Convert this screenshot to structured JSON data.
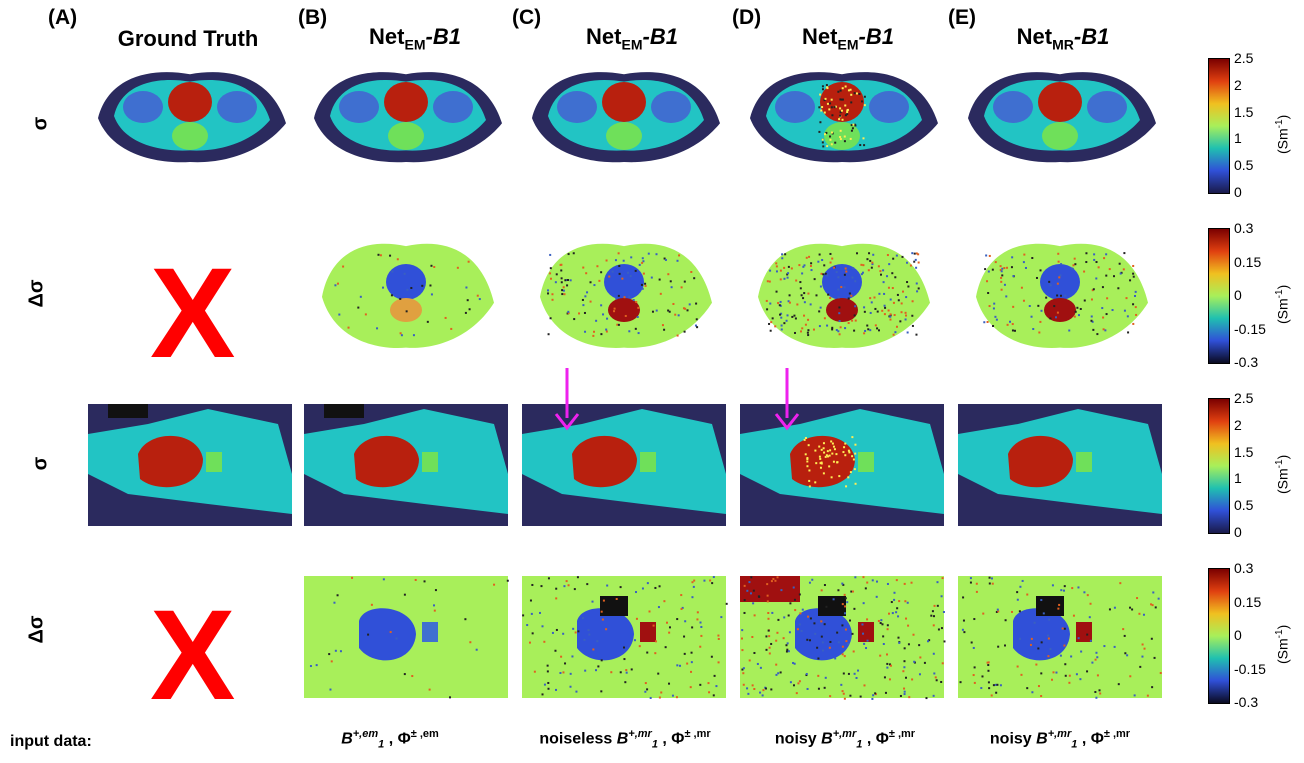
{
  "panels": [
    {
      "letter": "(A)",
      "title": "Ground Truth",
      "net": "",
      "sub": "",
      "suffix": ""
    },
    {
      "letter": "(B)",
      "title": "",
      "net": "Net",
      "sub": "EM",
      "suffix": "-B1"
    },
    {
      "letter": "(C)",
      "title": "",
      "net": "Net",
      "sub": "EM",
      "suffix": "-B1"
    },
    {
      "letter": "(D)",
      "title": "",
      "net": "Net",
      "sub": "EM",
      "suffix": "-B1"
    },
    {
      "letter": "(E)",
      "title": "",
      "net": "Net",
      "sub": "MR",
      "suffix": "-B1"
    }
  ],
  "rows": [
    {
      "label": "σ"
    },
    {
      "label": "Δσ"
    },
    {
      "label": "σ"
    },
    {
      "label": "Δσ"
    }
  ],
  "missing_marker": "X",
  "input_label": "input data:",
  "footers": [
    {
      "prefix": "",
      "b": "B",
      "bsub": "1",
      "bsup": "+,em",
      "phi": "Φ",
      "phisup": "± ,em"
    },
    {
      "prefix": "noiseless ",
      "b": "B",
      "bsub": "1",
      "bsup": "+,mr",
      "phi": "Φ",
      "phisup": "± ,mr"
    },
    {
      "prefix": "noisy ",
      "b": "B",
      "bsub": "1",
      "bsup": "+,mr",
      "phi": "Φ",
      "phisup": "± ,mr"
    },
    {
      "prefix": "noisy ",
      "b": "B",
      "bsub": "1",
      "bsup": "+,mr",
      "phi": "Φ",
      "phisup": "± ,mr"
    }
  ],
  "colorbars": [
    {
      "ticks": [
        "2.5",
        "2",
        "1.5",
        "1",
        "0.5",
        "0"
      ],
      "unit": "(Sm",
      "unit_sup": "-1",
      "unit_close": ")"
    },
    {
      "ticks": [
        "0.3",
        "0.15",
        "0",
        "-0.15",
        "-0.3"
      ],
      "unit": "(Sm",
      "unit_sup": "-1",
      "unit_close": ")"
    },
    {
      "ticks": [
        "2.5",
        "2",
        "1.5",
        "1",
        "0.5",
        "0"
      ],
      "unit": "(Sm",
      "unit_sup": "-1",
      "unit_close": ")"
    },
    {
      "ticks": [
        "0.3",
        "0.15",
        "0",
        "-0.15",
        "-0.3"
      ],
      "unit": "(Sm",
      "unit_sup": "-1",
      "unit_close": ")"
    }
  ],
  "colors": {
    "bg_dark": "#2b2a5e",
    "tissue_cyan": "#22c4c4",
    "tissue_light": "#3fd0b0",
    "organ_red": "#b8200e",
    "organ_green": "#6fe05a",
    "diff_green": "#a8ef5a",
    "diff_blue": "#3050d8",
    "diff_red": "#a01010",
    "arrow": "#ee22ee",
    "marker_red": "#ff0000"
  }
}
